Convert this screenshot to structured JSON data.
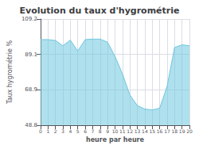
{
  "chart_data": {
    "type": "area",
    "title": "Evolution du taux d'hygrométrie",
    "xlabel": "heure par heure",
    "ylabel": "Taux hygrométrie %",
    "x": [
      0,
      1,
      2,
      3,
      4,
      5,
      6,
      7,
      8,
      9,
      10,
      11,
      12,
      13,
      14,
      15,
      16,
      17,
      18,
      19,
      20
    ],
    "values": [
      97.5,
      97.5,
      97.0,
      94.0,
      97.2,
      91.0,
      97.5,
      97.8,
      97.8,
      96.0,
      88.0,
      78.0,
      66.0,
      60.0,
      58.0,
      57.5,
      58.5,
      71.0,
      93.0,
      94.5,
      94.0
    ],
    "color": "#6ec6df",
    "xlim": [
      0,
      20
    ],
    "xticks": [
      0,
      1,
      2,
      3,
      4,
      5,
      6,
      7,
      8,
      9,
      10,
      11,
      12,
      13,
      14,
      15,
      16,
      17,
      18,
      19,
      20
    ],
    "ylim": [
      48.8,
      109.2
    ],
    "yticks": [
      48.8,
      68.9,
      89.1,
      109.2
    ],
    "grid": true
  }
}
